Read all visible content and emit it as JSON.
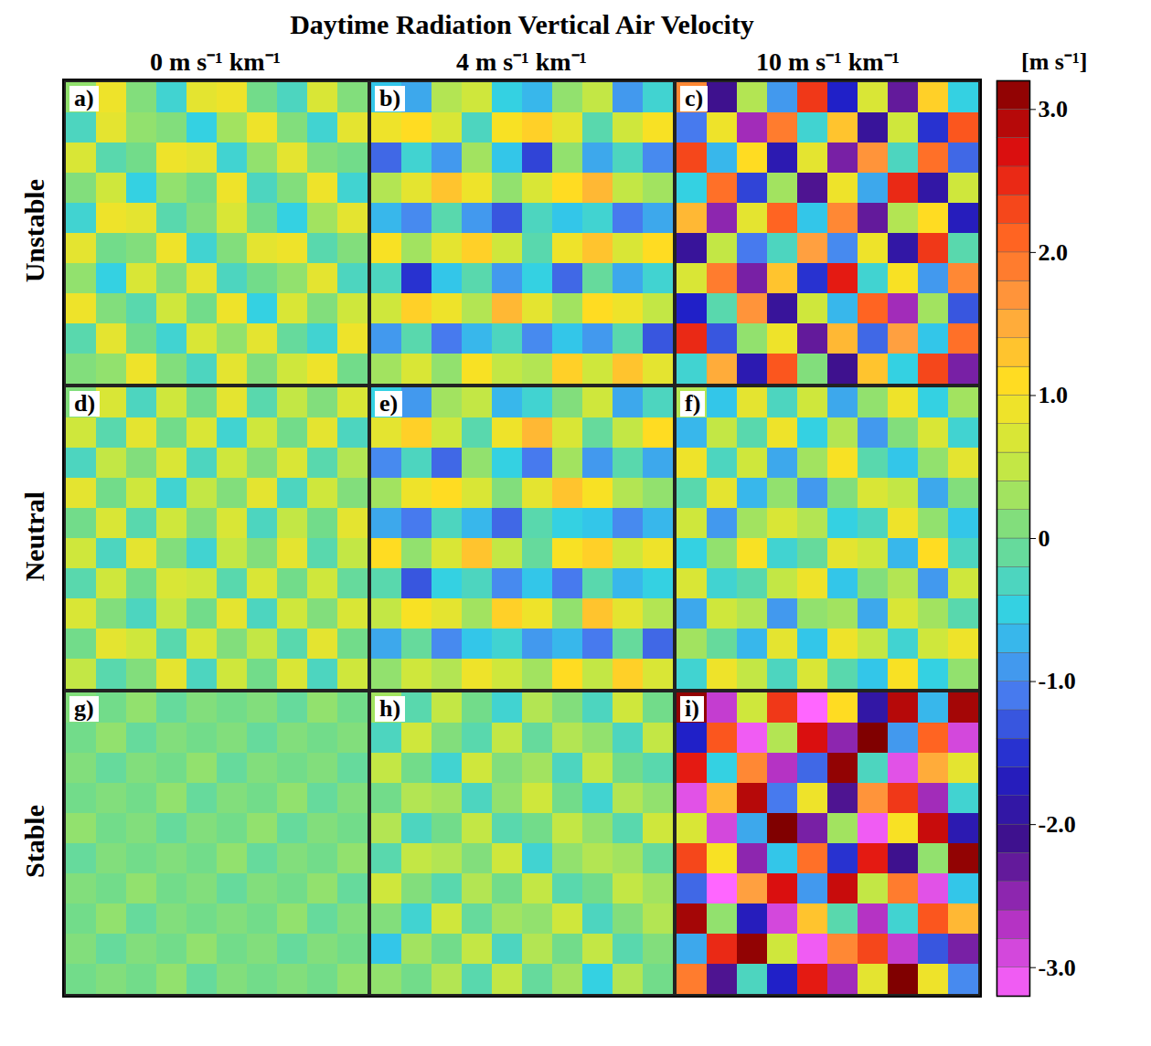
{
  "chart_data": {
    "type": "heatmap",
    "title": "Daytime Radiation Vertical Air Velocity",
    "columns": [
      "0 m s⁻¹ km⁻¹",
      "4 m s⁻¹ km⁻¹",
      "10 m s⁻¹ km⁻¹"
    ],
    "rows": [
      "Unstable",
      "Neutral",
      "Stable"
    ],
    "panels": [
      {
        "label": "a)",
        "values": [
          [
            0.2,
            0.9,
            0.1,
            -0.4,
            0.8,
            0.9,
            0.0,
            -0.3,
            0.7,
            0.1
          ],
          [
            -0.3,
            0.8,
            0.2,
            0.1,
            -0.5,
            0.3,
            0.9,
            0.1,
            -0.4,
            0.8
          ],
          [
            0.7,
            -0.2,
            0.0,
            0.9,
            0.8,
            -0.4,
            0.2,
            0.8,
            0.1,
            0.0
          ],
          [
            0.1,
            0.6,
            -0.5,
            0.2,
            0.0,
            0.9,
            -0.3,
            0.1,
            0.9,
            -0.4
          ],
          [
            -0.4,
            0.9,
            0.8,
            -0.2,
            0.1,
            0.7,
            0.0,
            -0.5,
            0.3,
            0.8
          ],
          [
            0.8,
            0.0,
            0.1,
            0.9,
            -0.4,
            0.1,
            0.8,
            0.9,
            -0.2,
            0.1
          ],
          [
            0.2,
            -0.5,
            0.7,
            0.1,
            0.8,
            -0.3,
            0.0,
            0.2,
            0.8,
            -0.3
          ],
          [
            0.9,
            0.1,
            -0.2,
            0.6,
            0.0,
            0.9,
            -0.5,
            0.7,
            0.1,
            0.6
          ],
          [
            -0.2,
            0.8,
            0.0,
            -0.4,
            0.7,
            0.2,
            0.8,
            -0.1,
            -0.4,
            0.9
          ],
          [
            0.1,
            0.2,
            0.9,
            0.1,
            -0.3,
            0.8,
            0.1,
            0.6,
            0.9,
            0.0
          ]
        ]
      },
      {
        "label": "b)",
        "values": [
          [
            -0.6,
            -0.8,
            0.4,
            0.6,
            -0.5,
            -0.7,
            0.2,
            0.5,
            -0.9,
            -0.4
          ],
          [
            0.9,
            1.1,
            0.7,
            -0.3,
            1.0,
            1.2,
            0.8,
            -0.2,
            0.6,
            1.0
          ],
          [
            -1.2,
            -0.4,
            -0.9,
            0.3,
            -0.6,
            -1.4,
            0.2,
            -0.8,
            -0.3,
            -1.0
          ],
          [
            0.4,
            0.8,
            1.3,
            0.9,
            0.2,
            0.7,
            1.1,
            1.4,
            0.5,
            0.3
          ],
          [
            -0.7,
            -1.0,
            -0.2,
            -0.9,
            -1.3,
            -0.3,
            -0.6,
            -0.4,
            -1.1,
            -0.8
          ],
          [
            1.0,
            0.3,
            0.8,
            1.2,
            0.6,
            -0.2,
            0.9,
            1.3,
            0.7,
            1.1
          ],
          [
            -0.3,
            -1.5,
            -0.6,
            -0.2,
            -0.9,
            -0.5,
            -1.2,
            -0.1,
            -0.8,
            -0.4
          ],
          [
            0.6,
            1.2,
            0.9,
            0.4,
            1.4,
            0.8,
            0.3,
            1.1,
            0.9,
            0.5
          ],
          [
            -0.9,
            -0.2,
            -1.1,
            -0.7,
            -0.3,
            -1.0,
            -0.6,
            -0.9,
            -0.2,
            -1.3
          ],
          [
            0.3,
            0.7,
            0.2,
            1.0,
            0.5,
            0.4,
            1.2,
            0.6,
            1.3,
            0.8
          ]
        ]
      },
      {
        "label": "c)",
        "values": [
          [
            1.8,
            -2.1,
            0.4,
            -0.9,
            2.4,
            -1.6,
            0.7,
            -2.3,
            1.2,
            -0.5
          ],
          [
            -1.1,
            0.9,
            -2.6,
            1.9,
            -0.4,
            1.3,
            -2.0,
            0.6,
            -1.5,
            2.2
          ],
          [
            2.3,
            -0.7,
            1.1,
            -1.8,
            0.8,
            -2.4,
            1.7,
            -0.3,
            2.0,
            -1.2
          ],
          [
            -0.5,
            2.0,
            -1.4,
            0.3,
            -2.2,
            0.9,
            -0.8,
            2.5,
            -1.9,
            0.6
          ],
          [
            1.4,
            -2.5,
            0.8,
            2.1,
            -0.6,
            1.8,
            -2.3,
            0.4,
            1.1,
            -1.7
          ],
          [
            -2.0,
            0.5,
            -1.1,
            -0.3,
            1.6,
            -1.0,
            0.9,
            -1.9,
            2.4,
            -0.2
          ],
          [
            0.7,
            1.9,
            -2.4,
            1.3,
            -1.5,
            2.6,
            -0.4,
            1.0,
            -0.9,
            1.8
          ],
          [
            -1.6,
            -0.2,
            1.7,
            -2.0,
            0.6,
            -0.7,
            2.1,
            -2.6,
            0.3,
            -1.3
          ],
          [
            2.5,
            -1.3,
            0.2,
            0.9,
            -2.3,
            1.4,
            -1.2,
            1.6,
            -0.6,
            2.0
          ],
          [
            -0.4,
            1.5,
            -1.8,
            2.2,
            0.1,
            -2.1,
            1.3,
            -0.5,
            2.3,
            -2.4
          ]
        ]
      },
      {
        "label": "d)",
        "values": [
          [
            0.1,
            0.7,
            -0.3,
            0.6,
            0.0,
            0.8,
            -0.2,
            0.5,
            0.1,
            0.7
          ],
          [
            0.6,
            -0.2,
            0.8,
            0.0,
            0.7,
            -0.4,
            0.6,
            0.0,
            0.8,
            -0.3
          ],
          [
            -0.3,
            0.5,
            0.1,
            0.7,
            -0.3,
            0.6,
            0.1,
            0.7,
            -0.2,
            0.4
          ],
          [
            0.8,
            0.0,
            0.6,
            -0.4,
            0.5,
            0.1,
            0.8,
            -0.3,
            0.6,
            0.1
          ],
          [
            0.0,
            0.7,
            -0.2,
            0.6,
            0.1,
            0.7,
            -0.3,
            0.5,
            0.0,
            0.8
          ],
          [
            0.6,
            -0.3,
            0.8,
            0.1,
            -0.4,
            0.5,
            0.1,
            0.8,
            -0.2,
            0.5
          ],
          [
            -0.2,
            0.6,
            0.0,
            0.7,
            0.6,
            -0.2,
            0.7,
            0.0,
            0.6,
            -0.1
          ],
          [
            0.7,
            0.1,
            -0.3,
            0.5,
            0.0,
            0.8,
            -0.3,
            0.6,
            0.1,
            0.7
          ],
          [
            0.0,
            0.8,
            0.6,
            -0.2,
            0.7,
            0.1,
            0.5,
            -0.2,
            0.8,
            0.0
          ],
          [
            0.5,
            -0.2,
            0.1,
            0.8,
            -0.3,
            0.6,
            0.0,
            0.7,
            -0.3,
            0.6
          ]
        ]
      },
      {
        "label": "e)",
        "values": [
          [
            -0.5,
            -0.9,
            0.3,
            0.5,
            -0.7,
            -0.4,
            0.1,
            0.6,
            -0.8,
            -0.3
          ],
          [
            0.8,
            1.2,
            0.6,
            -0.2,
            0.9,
            1.4,
            0.7,
            -0.1,
            0.5,
            1.1
          ],
          [
            -1.0,
            -0.3,
            -1.2,
            0.2,
            -0.5,
            -1.1,
            0.3,
            -0.9,
            -0.2,
            -0.8
          ],
          [
            0.3,
            0.9,
            1.1,
            0.7,
            0.1,
            0.8,
            1.3,
            1.0,
            0.4,
            0.2
          ],
          [
            -0.8,
            -1.1,
            -0.3,
            -0.7,
            -1.2,
            -0.2,
            -0.5,
            -0.6,
            -1.0,
            -0.7
          ],
          [
            1.1,
            0.2,
            0.7,
            1.3,
            0.5,
            -0.1,
            1.0,
            1.2,
            0.6,
            0.9
          ],
          [
            -0.2,
            -1.3,
            -0.5,
            -0.3,
            -1.0,
            -0.6,
            -1.1,
            -0.2,
            -0.7,
            -0.5
          ],
          [
            0.5,
            1.0,
            0.8,
            0.3,
            1.2,
            0.9,
            0.2,
            1.3,
            0.8,
            0.4
          ],
          [
            -0.8,
            -0.1,
            -1.0,
            -0.6,
            -0.4,
            -0.9,
            -0.7,
            -1.1,
            -0.1,
            -1.2
          ],
          [
            0.2,
            0.6,
            0.4,
            0.9,
            0.6,
            0.3,
            1.1,
            0.5,
            1.2,
            0.7
          ]
        ]
      },
      {
        "label": "f)",
        "values": [
          [
            0.4,
            -0.6,
            0.8,
            -0.3,
            0.6,
            -0.8,
            0.2,
            0.9,
            -0.5,
            0.3
          ],
          [
            -0.7,
            0.5,
            -0.2,
            0.9,
            -0.5,
            0.4,
            -0.9,
            0.1,
            0.7,
            -0.4
          ],
          [
            0.9,
            -0.3,
            0.6,
            -0.8,
            0.3,
            1.0,
            -0.2,
            -0.6,
            0.2,
            0.8
          ],
          [
            -0.2,
            0.8,
            -0.7,
            0.2,
            -0.9,
            0.1,
            0.7,
            0.5,
            -0.8,
            0.1
          ],
          [
            0.6,
            -0.9,
            0.3,
            0.7,
            0.4,
            -0.5,
            -0.3,
            0.9,
            0.2,
            -0.6
          ],
          [
            -0.5,
            0.2,
            1.0,
            -0.4,
            -0.1,
            0.8,
            0.6,
            -0.7,
            1.1,
            -0.3
          ],
          [
            0.7,
            -0.4,
            -0.2,
            0.5,
            0.9,
            -0.6,
            0.1,
            0.4,
            -0.9,
            0.6
          ],
          [
            -0.8,
            0.6,
            0.4,
            -0.9,
            0.2,
            0.3,
            -0.8,
            0.7,
            0.3,
            -0.2
          ],
          [
            0.3,
            -0.1,
            -0.7,
            0.8,
            -0.6,
            0.9,
            0.5,
            -0.4,
            0.6,
            0.9
          ],
          [
            -0.4,
            0.9,
            0.5,
            -0.3,
            0.7,
            -0.2,
            -0.6,
            1.0,
            -0.5,
            0.2
          ]
        ]
      },
      {
        "label": "g)",
        "values": [
          [
            0.1,
            0.0,
            0.2,
            -0.1,
            0.1,
            0.0,
            0.1,
            -0.1,
            0.2,
            0.0
          ],
          [
            0.0,
            0.2,
            -0.1,
            0.1,
            0.0,
            0.1,
            -0.1,
            0.1,
            0.0,
            0.1
          ],
          [
            0.1,
            -0.1,
            0.1,
            0.0,
            0.2,
            -0.1,
            0.1,
            0.0,
            0.1,
            -0.1
          ],
          [
            0.0,
            0.1,
            0.0,
            0.2,
            -0.1,
            0.1,
            0.0,
            0.2,
            -0.1,
            0.1
          ],
          [
            0.2,
            0.0,
            0.1,
            -0.1,
            0.1,
            0.0,
            0.2,
            -0.1,
            0.1,
            0.0
          ],
          [
            -0.1,
            0.1,
            0.0,
            0.1,
            0.0,
            0.2,
            -0.1,
            0.1,
            0.0,
            0.2
          ],
          [
            0.1,
            0.0,
            0.2,
            0.0,
            0.1,
            -0.1,
            0.1,
            0.0,
            0.2,
            -0.1
          ],
          [
            0.0,
            0.2,
            -0.1,
            0.1,
            0.0,
            0.1,
            0.0,
            0.2,
            -0.1,
            0.1
          ],
          [
            0.1,
            -0.1,
            0.1,
            0.0,
            0.2,
            0.0,
            0.1,
            -0.1,
            0.1,
            0.0
          ],
          [
            0.0,
            0.1,
            0.0,
            0.2,
            -0.1,
            0.1,
            0.0,
            0.1,
            0.0,
            0.2
          ]
        ]
      },
      {
        "label": "h)",
        "values": [
          [
            0.3,
            -0.2,
            0.5,
            0.0,
            -0.4,
            0.4,
            0.1,
            -0.3,
            0.6,
            0.0
          ],
          [
            -0.3,
            0.6,
            0.1,
            -0.2,
            0.5,
            -0.1,
            0.4,
            0.2,
            -0.3,
            0.5
          ],
          [
            0.5,
            0.0,
            -0.4,
            0.6,
            0.1,
            0.3,
            -0.3,
            0.5,
            0.0,
            -0.2
          ],
          [
            0.0,
            0.4,
            0.3,
            -0.3,
            0.2,
            0.6,
            0.0,
            -0.4,
            0.4,
            0.2
          ],
          [
            0.4,
            -0.3,
            0.0,
            0.5,
            -0.2,
            0.0,
            0.5,
            0.2,
            -0.2,
            0.6
          ],
          [
            -0.2,
            0.5,
            0.4,
            0.1,
            0.6,
            -0.4,
            0.2,
            0.4,
            0.3,
            -0.1
          ],
          [
            0.6,
            0.1,
            -0.2,
            0.4,
            0.0,
            0.5,
            -0.2,
            0.0,
            0.5,
            0.3
          ],
          [
            0.1,
            -0.4,
            0.6,
            -0.1,
            0.3,
            0.2,
            0.6,
            -0.3,
            0.1,
            0.4
          ],
          [
            -0.6,
            0.3,
            0.0,
            0.5,
            -0.3,
            0.4,
            0.0,
            0.5,
            -0.2,
            0.1
          ],
          [
            0.2,
            0.0,
            0.4,
            -0.2,
            0.5,
            -0.1,
            0.3,
            -0.5,
            0.4,
            0.0
          ]
        ]
      },
      {
        "label": "i)",
        "values": [
          [
            3.1,
            -2.8,
            0.6,
            2.4,
            -3.2,
            1.1,
            -1.9,
            2.9,
            -0.7,
            3.0
          ],
          [
            -1.6,
            2.2,
            -3.1,
            0.4,
            2.7,
            -2.5,
            3.2,
            -0.9,
            2.1,
            -2.9
          ],
          [
            2.6,
            -0.5,
            1.8,
            -2.7,
            -1.2,
            3.1,
            -0.3,
            -3.0,
            1.5,
            0.8
          ],
          [
            -3.0,
            1.4,
            2.9,
            -1.1,
            0.9,
            -2.2,
            1.7,
            2.4,
            -2.6,
            -0.4
          ],
          [
            0.7,
            -2.9,
            -0.8,
            3.2,
            -2.4,
            0.3,
            -3.1,
            1.0,
            2.8,
            -1.8
          ],
          [
            2.3,
            1.0,
            -2.5,
            -0.6,
            2.0,
            -1.5,
            2.6,
            -2.1,
            0.2,
            3.1
          ],
          [
            -1.2,
            -3.2,
            1.6,
            2.7,
            -0.9,
            2.8,
            0.5,
            1.9,
            -3.0,
            -0.6
          ],
          [
            3.0,
            0.2,
            -1.7,
            -2.9,
            1.3,
            -0.2,
            -2.7,
            -0.4,
            2.2,
            1.4
          ],
          [
            -0.8,
            2.5,
            3.1,
            0.6,
            -3.1,
            1.8,
            2.3,
            -2.8,
            -1.3,
            -2.4
          ],
          [
            1.9,
            -2.2,
            -0.3,
            -1.6,
            2.6,
            -2.6,
            0.8,
            3.2,
            0.9,
            -1.0
          ]
        ]
      }
    ],
    "colorbar": {
      "label": "[m s⁻¹]",
      "range": [
        -3.2,
        3.2
      ],
      "ticks": [
        {
          "value": 3,
          "label": "3.0"
        },
        {
          "value": 2,
          "label": "2.0"
        },
        {
          "value": 1,
          "label": "1.0"
        },
        0,
        {
          "value": -1,
          "label": "-1.0"
        },
        {
          "value": -2,
          "label": "-2.0"
        },
        {
          "value": -3,
          "label": "-3.0"
        }
      ]
    }
  }
}
